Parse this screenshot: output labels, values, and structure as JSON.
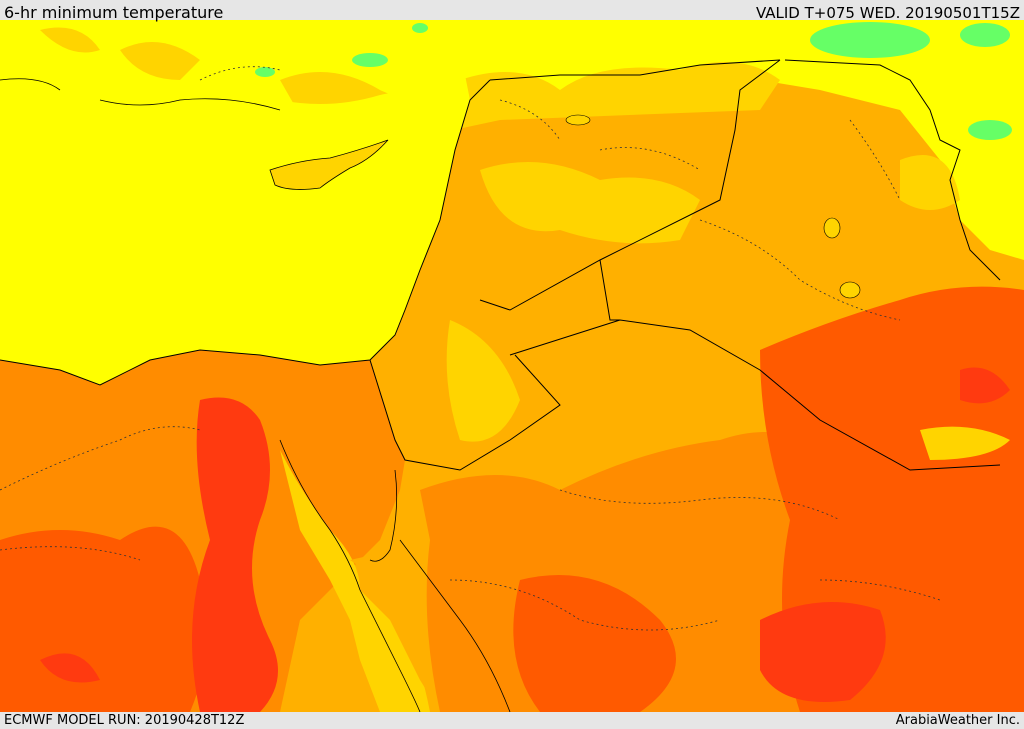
{
  "header": {
    "title": "6-hr minimum temperature",
    "valid": "VALID T+075 WED. 20190501T15Z"
  },
  "footer": {
    "model_run": "ECMWF MODEL RUN: 20190428T12Z",
    "credit": "ArabiaWeather Inc."
  },
  "colors": {
    "sea_yellow": "#ffff00",
    "light_orange": "#ffd400",
    "orange": "#ffb000",
    "dark_orange": "#ff8c00",
    "red_orange": "#ff5a00",
    "red": "#ff3a10",
    "green": "#66ff66",
    "border": "#000000"
  }
}
